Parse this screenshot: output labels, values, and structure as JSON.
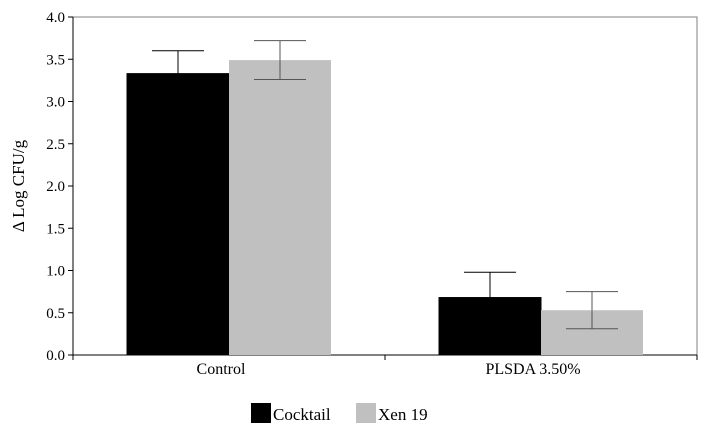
{
  "chart_data": {
    "type": "bar",
    "categories": [
      "Control",
      "PLSDA 3.50%"
    ],
    "series": [
      {
        "name": "Cocktail",
        "values": [
          3.33,
          0.68
        ],
        "errors": [
          0.27,
          0.3
        ],
        "color": "#000000"
      },
      {
        "name": "Xen 19",
        "values": [
          3.49,
          0.53
        ],
        "errors": [
          0.23,
          0.22
        ],
        "color": "#c0c0c0"
      }
    ],
    "xlabel": "",
    "ylabel": "Δ Log CFU/g",
    "ylim": [
      0,
      4.0
    ],
    "yticks": [
      "0.0",
      "0.5",
      "1.0",
      "1.5",
      "2.0",
      "2.5",
      "3.0",
      "3.5",
      "4.0"
    ],
    "grid": false,
    "legend_position": "bottom-center"
  }
}
